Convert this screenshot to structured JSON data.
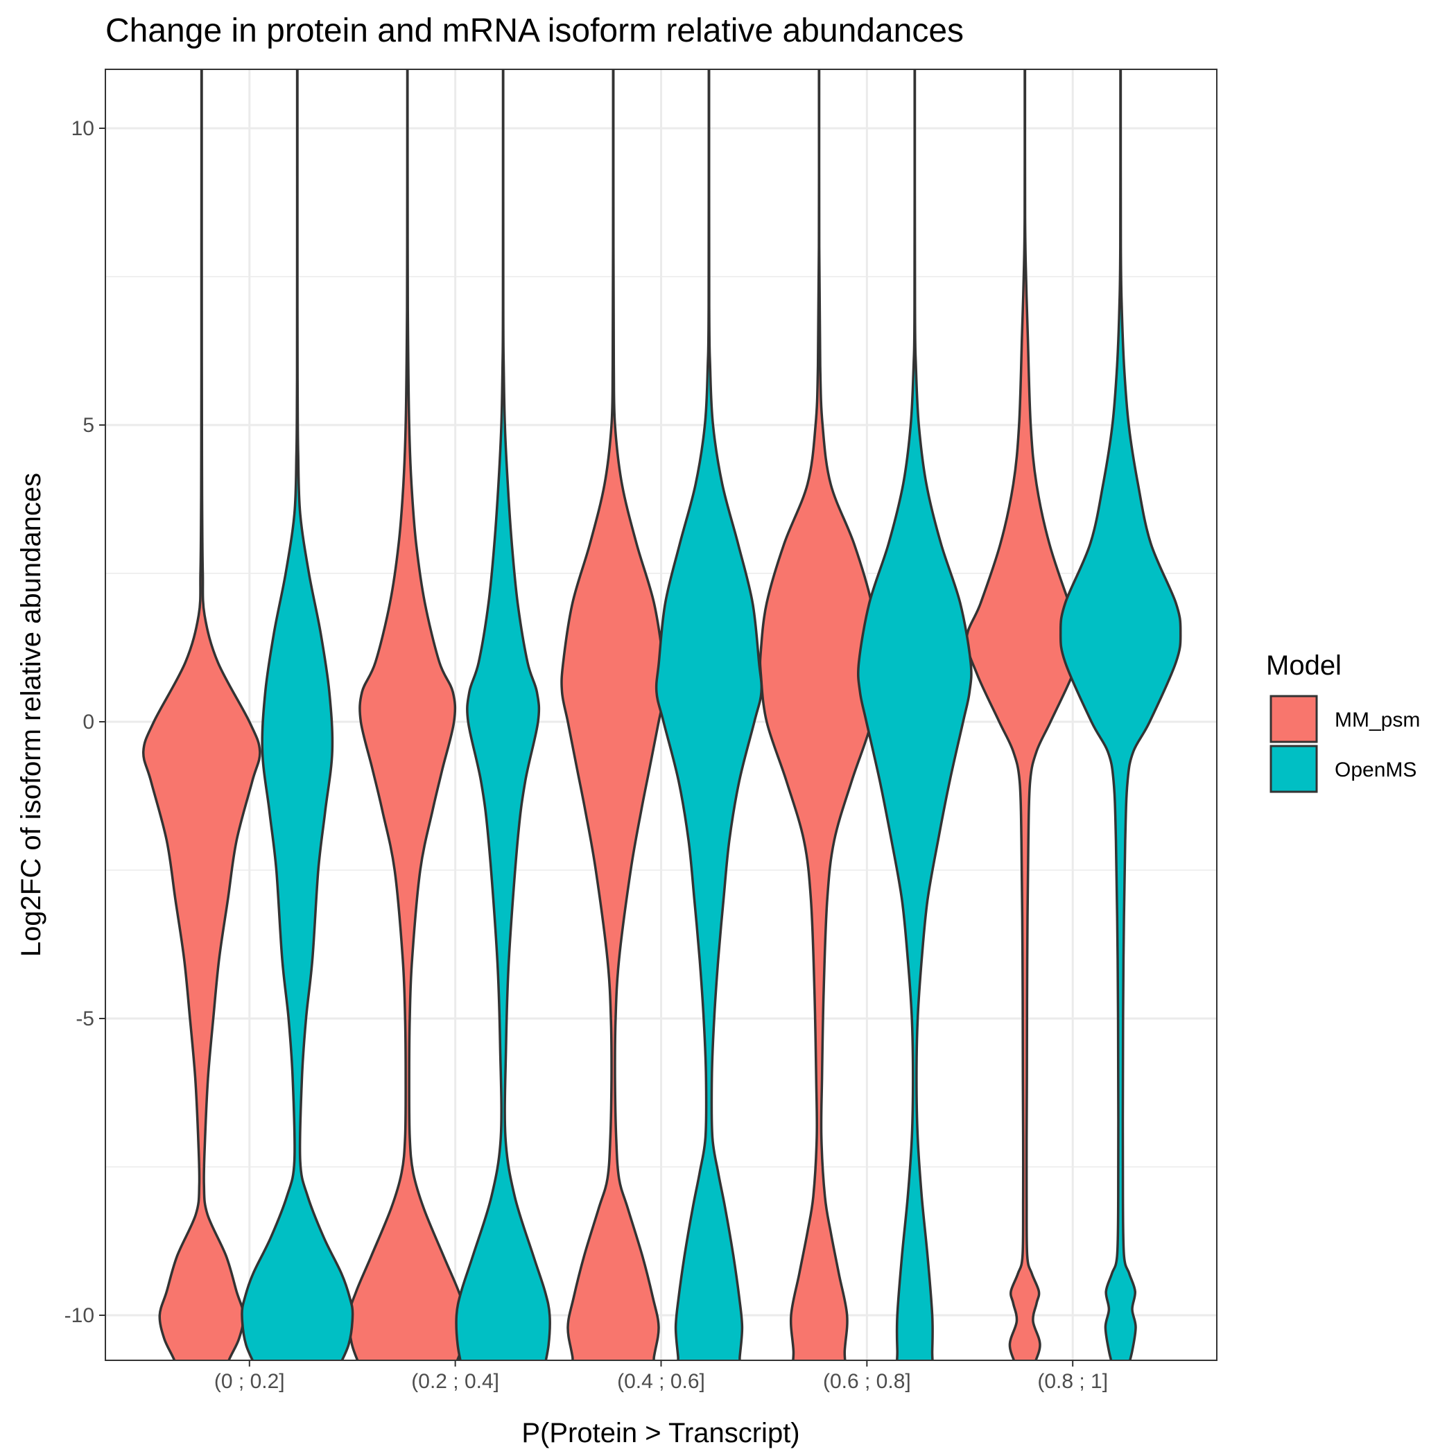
{
  "chart_data": {
    "type": "violin",
    "title": "Change in protein and mRNA isoform relative abundances",
    "xlabel": "P(Protein > Transcript)",
    "ylabel": "Log2FC of isoform relative abundances",
    "categories": [
      "(0 ; 0.2]",
      "(0.2 ; 0.4]",
      "(0.4 ; 0.6]",
      "(0.6 ; 0.8]",
      "(0.8 ; 1]"
    ],
    "ylim": [
      -11.3,
      11
    ],
    "yticks": [
      10,
      5,
      0,
      -5,
      -10
    ],
    "grid": true,
    "legend": {
      "title": "Model",
      "position": "right",
      "entries": [
        {
          "name": "MM_psm",
          "color": "#F8766D"
        },
        {
          "name": "OpenMS",
          "color": "#00BFC4"
        }
      ]
    },
    "series": [
      {
        "name": "MM_psm",
        "color": "#F8766D",
        "violins": [
          {
            "profile": [
              [
                11,
                0.002
              ],
              [
                8,
                0.003
              ],
              [
                6,
                0.004
              ],
              [
                4.5,
                0.006
              ],
              [
                3.5,
                0.01
              ],
              [
                2.5,
                0.02
              ],
              [
                1.8,
                0.05
              ],
              [
                1,
                0.28
              ],
              [
                0,
                0.82
              ],
              [
                -0.5,
                1
              ],
              [
                -1,
                0.87
              ],
              [
                -2,
                0.6
              ],
              [
                -3,
                0.45
              ],
              [
                -4,
                0.3
              ],
              [
                -5,
                0.2
              ],
              [
                -6,
                0.11
              ],
              [
                -7,
                0.06
              ],
              [
                -7.8,
                0.04
              ],
              [
                -8.3,
                0.1
              ],
              [
                -9,
                0.42
              ],
              [
                -9.6,
                0.6
              ],
              [
                -10,
                0.72
              ],
              [
                -10.4,
                0.64
              ],
              [
                -10.8,
                0.45
              ],
              [
                -11.3,
                0.3
              ]
            ]
          },
          {
            "profile": [
              [
                11,
                0.002
              ],
              [
                8,
                0.004
              ],
              [
                6.5,
                0.01
              ],
              [
                5,
                0.03
              ],
              [
                4,
                0.07
              ],
              [
                3,
                0.15
              ],
              [
                2,
                0.3
              ],
              [
                1,
                0.55
              ],
              [
                0.5,
                0.78
              ],
              [
                0,
                0.8
              ],
              [
                -0.8,
                0.6
              ],
              [
                -1.5,
                0.43
              ],
              [
                -2.5,
                0.22
              ],
              [
                -4,
                0.08
              ],
              [
                -5,
                0.04
              ],
              [
                -6,
                0.03
              ],
              [
                -7,
                0.04
              ],
              [
                -7.6,
                0.1
              ],
              [
                -8.2,
                0.28
              ],
              [
                -9,
                0.62
              ],
              [
                -9.6,
                0.88
              ],
              [
                -10,
                1
              ],
              [
                -10.5,
                0.95
              ],
              [
                -11,
                0.75
              ],
              [
                -11.3,
                0.6
              ]
            ]
          },
          {
            "profile": [
              [
                11,
                0.002
              ],
              [
                8,
                0.004
              ],
              [
                6,
                0.01
              ],
              [
                5,
                0.03
              ],
              [
                4,
                0.15
              ],
              [
                3,
                0.4
              ],
              [
                2,
                0.7
              ],
              [
                1,
                0.86
              ],
              [
                0.5,
                0.88
              ],
              [
                0,
                0.78
              ],
              [
                -0.8,
                0.62
              ],
              [
                -1.5,
                0.48
              ],
              [
                -2.5,
                0.3
              ],
              [
                -4,
                0.1
              ],
              [
                -5,
                0.04
              ],
              [
                -6,
                0.03
              ],
              [
                -7,
                0.05
              ],
              [
                -7.7,
                0.1
              ],
              [
                -8.2,
                0.25
              ],
              [
                -9,
                0.5
              ],
              [
                -9.7,
                0.68
              ],
              [
                -10.2,
                0.78
              ],
              [
                -10.7,
                0.7
              ],
              [
                -11.3,
                0.6
              ]
            ]
          },
          {
            "profile": [
              [
                11,
                0.002
              ],
              [
                8,
                0.003
              ],
              [
                6,
                0.02
              ],
              [
                5,
                0.06
              ],
              [
                4,
                0.2
              ],
              [
                3,
                0.6
              ],
              [
                2,
                0.9
              ],
              [
                1.2,
                1
              ],
              [
                0.8,
                1
              ],
              [
                0,
                0.9
              ],
              [
                -1,
                0.56
              ],
              [
                -2,
                0.26
              ],
              [
                -3,
                0.14
              ],
              [
                -4.5,
                0.08
              ],
              [
                -6,
                0.05
              ],
              [
                -7,
                0.04
              ],
              [
                -8,
                0.1
              ],
              [
                -8.6,
                0.2
              ],
              [
                -9.3,
                0.34
              ],
              [
                -10,
                0.48
              ],
              [
                -10.6,
                0.44
              ],
              [
                -11.3,
                0.4
              ]
            ]
          },
          {
            "profile": [
              [
                11,
                0.002
              ],
              [
                8.5,
                0.004
              ],
              [
                7.5,
                0.02
              ],
              [
                6.5,
                0.05
              ],
              [
                5,
                0.1
              ],
              [
                4,
                0.2
              ],
              [
                3,
                0.42
              ],
              [
                2,
                0.76
              ],
              [
                1.4,
                1
              ],
              [
                0.8,
                0.82
              ],
              [
                0,
                0.44
              ],
              [
                -0.5,
                0.2
              ],
              [
                -1,
                0.09
              ],
              [
                -2,
                0.06
              ],
              [
                -4,
                0.04
              ],
              [
                -6,
                0.035
              ],
              [
                -7,
                0.03
              ],
              [
                -8,
                0.03
              ],
              [
                -9,
                0.04
              ],
              [
                -9.3,
                0.12
              ],
              [
                -9.6,
                0.24
              ],
              [
                -9.8,
                0.2
              ],
              [
                -10.1,
                0.14
              ],
              [
                -10.5,
                0.26
              ],
              [
                -10.9,
                0.14
              ],
              [
                -11.3,
                0.07
              ]
            ]
          }
        ]
      },
      {
        "name": "OpenMS",
        "color": "#00BFC4",
        "violins": [
          {
            "profile": [
              [
                11,
                0.002
              ],
              [
                7,
                0.003
              ],
              [
                5.5,
                0.006
              ],
              [
                4.5,
                0.015
              ],
              [
                3.5,
                0.05
              ],
              [
                2.5,
                0.2
              ],
              [
                1.5,
                0.4
              ],
              [
                0.5,
                0.55
              ],
              [
                -0.5,
                0.6
              ],
              [
                -1.5,
                0.48
              ],
              [
                -2.5,
                0.36
              ],
              [
                -4,
                0.26
              ],
              [
                -5,
                0.15
              ],
              [
                -6,
                0.08
              ],
              [
                -7.4,
                0.05
              ],
              [
                -8,
                0.18
              ],
              [
                -8.7,
                0.46
              ],
              [
                -9.3,
                0.76
              ],
              [
                -9.7,
                0.9
              ],
              [
                -10,
                0.95
              ],
              [
                -10.5,
                0.88
              ],
              [
                -11,
                0.65
              ],
              [
                -11.3,
                0.55
              ]
            ]
          },
          {
            "profile": [
              [
                11,
                0.002
              ],
              [
                7,
                0.003
              ],
              [
                6,
                0.01
              ],
              [
                5,
                0.03
              ],
              [
                4,
                0.08
              ],
              [
                3,
                0.15
              ],
              [
                2,
                0.25
              ],
              [
                1,
                0.42
              ],
              [
                0.5,
                0.58
              ],
              [
                0,
                0.6
              ],
              [
                -1,
                0.38
              ],
              [
                -2,
                0.25
              ],
              [
                -4,
                0.1
              ],
              [
                -5.5,
                0.05
              ],
              [
                -7,
                0.04
              ],
              [
                -8,
                0.2
              ],
              [
                -9,
                0.52
              ],
              [
                -9.6,
                0.72
              ],
              [
                -10,
                0.8
              ],
              [
                -10.5,
                0.78
              ],
              [
                -11,
                0.68
              ],
              [
                -11.3,
                0.6
              ]
            ]
          },
          {
            "profile": [
              [
                11,
                0.002
              ],
              [
                7,
                0.005
              ],
              [
                6,
                0.02
              ],
              [
                5,
                0.07
              ],
              [
                4,
                0.23
              ],
              [
                3,
                0.5
              ],
              [
                2,
                0.75
              ],
              [
                1,
                0.86
              ],
              [
                0.5,
                0.9
              ],
              [
                0,
                0.78
              ],
              [
                -1,
                0.52
              ],
              [
                -2,
                0.35
              ],
              [
                -3,
                0.25
              ],
              [
                -4,
                0.16
              ],
              [
                -5,
                0.09
              ],
              [
                -6,
                0.05
              ],
              [
                -7,
                0.06
              ],
              [
                -7.6,
                0.16
              ],
              [
                -8.2,
                0.28
              ],
              [
                -9,
                0.42
              ],
              [
                -9.7,
                0.52
              ],
              [
                -10.2,
                0.57
              ],
              [
                -10.7,
                0.53
              ],
              [
                -11.3,
                0.47
              ]
            ]
          },
          {
            "profile": [
              [
                11,
                0.002
              ],
              [
                7,
                0.004
              ],
              [
                6,
                0.02
              ],
              [
                5,
                0.07
              ],
              [
                4,
                0.2
              ],
              [
                3,
                0.45
              ],
              [
                2,
                0.78
              ],
              [
                1,
                0.96
              ],
              [
                0.5,
                0.94
              ],
              [
                0,
                0.83
              ],
              [
                -1,
                0.6
              ],
              [
                -2,
                0.4
              ],
              [
                -3,
                0.22
              ],
              [
                -4,
                0.12
              ],
              [
                -5,
                0.05
              ],
              [
                -6,
                0.03
              ],
              [
                -7,
                0.05
              ],
              [
                -8,
                0.12
              ],
              [
                -9,
                0.22
              ],
              [
                -10,
                0.3
              ],
              [
                -10.6,
                0.3
              ],
              [
                -11.3,
                0.27
              ]
            ]
          },
          {
            "profile": [
              [
                11,
                0.002
              ],
              [
                8,
                0.005
              ],
              [
                7,
                0.02
              ],
              [
                6,
                0.06
              ],
              [
                5,
                0.14
              ],
              [
                4,
                0.3
              ],
              [
                3,
                0.52
              ],
              [
                2,
                0.95
              ],
              [
                1.5,
                1.03
              ],
              [
                1,
                0.95
              ],
              [
                0,
                0.5
              ],
              [
                -0.5,
                0.22
              ],
              [
                -1,
                0.12
              ],
              [
                -2,
                0.08
              ],
              [
                -4,
                0.05
              ],
              [
                -6,
                0.04
              ],
              [
                -8,
                0.04
              ],
              [
                -9,
                0.06
              ],
              [
                -9.3,
                0.15
              ],
              [
                -9.6,
                0.25
              ],
              [
                -9.9,
                0.2
              ],
              [
                -10.2,
                0.26
              ],
              [
                -10.6,
                0.2
              ],
              [
                -11,
                0.1
              ],
              [
                -11.3,
                0.06
              ]
            ]
          }
        ]
      }
    ]
  }
}
